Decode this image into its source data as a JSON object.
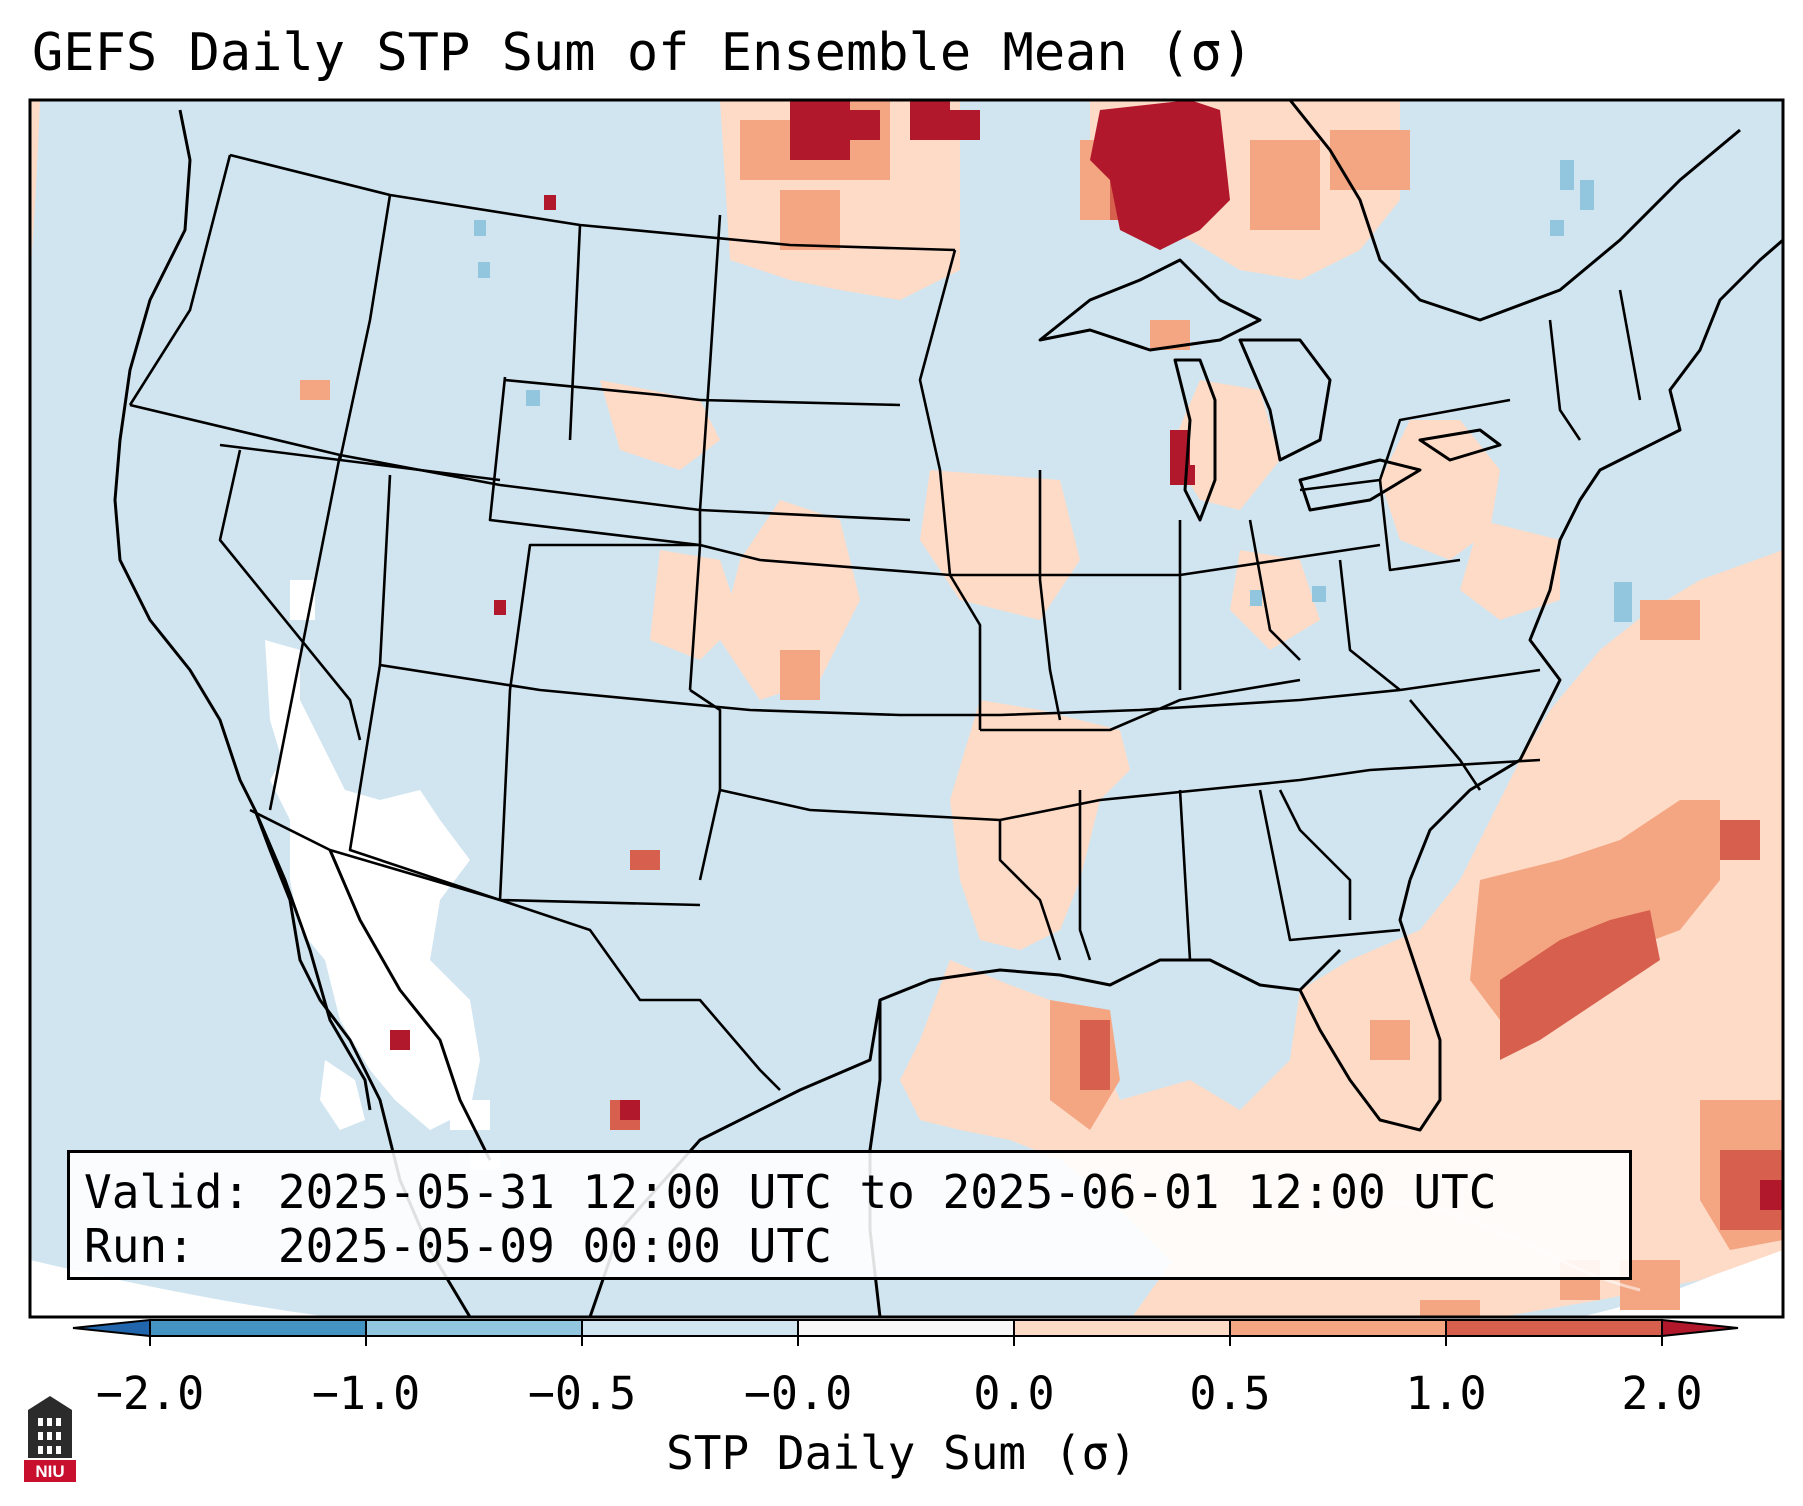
{
  "title": "GEFS Daily STP Sum of Ensemble Mean (σ)",
  "info": {
    "valid_label": "Valid:",
    "valid_value": "2025-05-31 12:00 UTC to 2025-06-01 12:00 UTC",
    "run_label": "Run:",
    "run_value": "2025-05-09 00:00 UTC"
  },
  "colorbar": {
    "label": "STP Daily Sum (σ)",
    "ticks": [
      "−2.0",
      "−1.0",
      "−0.5",
      "−0.0",
      "0.0",
      "0.5",
      "1.0",
      "2.0"
    ],
    "bins": [
      {
        "range": "-2.0 to -1.0",
        "color": "#4393c3"
      },
      {
        "range": "-1.0 to -0.5",
        "color": "#92c5de"
      },
      {
        "range": "-0.5 to -0.0",
        "color": "#d1e5f0"
      },
      {
        "range": "-0.0 to 0.0",
        "color": "#f7f7f7"
      },
      {
        "range": "0.0 to 0.5",
        "color": "#fddbc7"
      },
      {
        "range": "0.5 to 1.0",
        "color": "#f4a582"
      },
      {
        "range": "1.0 to 2.0",
        "color": "#d6604d"
      }
    ],
    "under_color": "#2166ac",
    "over_color": "#b2182b"
  },
  "map": {
    "background_color": "#d1e5f0",
    "no_data_color": "#ffffff"
  },
  "logo": {
    "text": "NIU",
    "color": "#c8102e"
  }
}
